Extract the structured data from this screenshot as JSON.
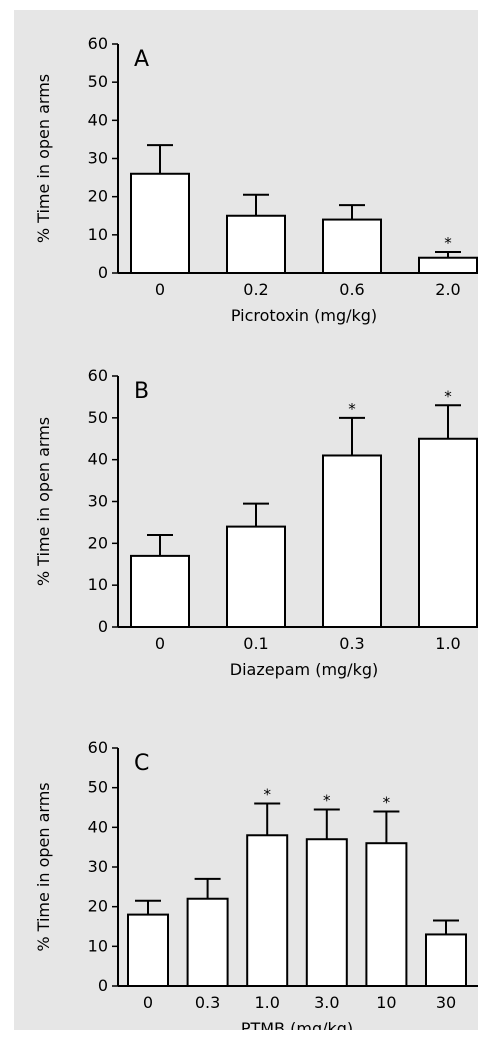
{
  "chart_data": [
    {
      "type": "bar",
      "panel_label": "A",
      "xlabel": "Picrotoxin (mg/kg)",
      "ylabel": "% Time in open arms",
      "ylim": [
        0,
        60
      ],
      "yticks": [
        0,
        10,
        20,
        30,
        40,
        50,
        60
      ],
      "categories": [
        "0",
        "0.2",
        "0.6",
        "2.0"
      ],
      "values": [
        26,
        15,
        14,
        4
      ],
      "errors": [
        7.5,
        5.5,
        3.8,
        1.5
      ],
      "significance": [
        "",
        "",
        "",
        "*"
      ],
      "bar_fill": "#ffffff",
      "grid": false
    },
    {
      "type": "bar",
      "panel_label": "B",
      "xlabel": "Diazepam (mg/kg)",
      "ylabel": "% Time in open arms",
      "ylim": [
        0,
        60
      ],
      "yticks": [
        0,
        10,
        20,
        30,
        40,
        50,
        60
      ],
      "categories": [
        "0",
        "0.1",
        "0.3",
        "1.0"
      ],
      "values": [
        17,
        24,
        41,
        45
      ],
      "errors": [
        5,
        5.5,
        9,
        8
      ],
      "significance": [
        "",
        "",
        "*",
        "*"
      ],
      "bar_fill": "#ffffff",
      "grid": false
    },
    {
      "type": "bar",
      "panel_label": "C",
      "xlabel": "PTMB (mg/kg)",
      "ylabel": "% Time in open arms",
      "ylim": [
        0,
        60
      ],
      "yticks": [
        0,
        10,
        20,
        30,
        40,
        50,
        60
      ],
      "categories": [
        "0",
        "0.3",
        "1.0",
        "3.0",
        "10",
        "30"
      ],
      "values": [
        18,
        22,
        38,
        37,
        36,
        13
      ],
      "errors": [
        3.5,
        5,
        8,
        7.5,
        8,
        3.5
      ],
      "significance": [
        "",
        "",
        "*",
        "*",
        "*",
        ""
      ],
      "bar_fill": "#ffffff",
      "grid": false
    }
  ]
}
